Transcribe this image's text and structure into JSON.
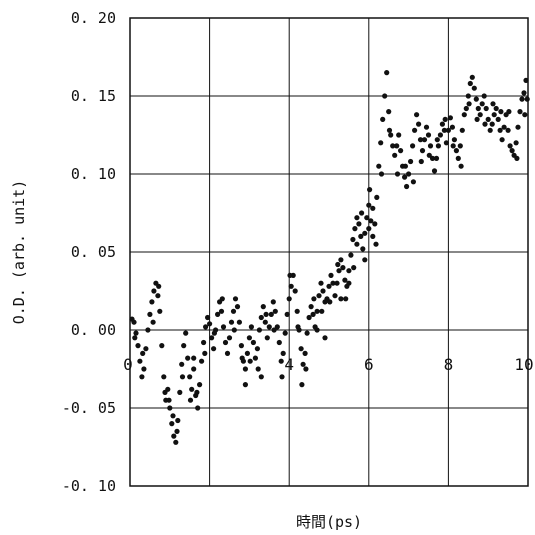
{
  "chart_data": {
    "type": "scatter",
    "title": "",
    "xlabel": "時間(ps)",
    "ylabel": "O.D.  (arb. unit)",
    "xlim": [
      0,
      10
    ],
    "ylim": [
      -0.1,
      0.2
    ],
    "x_ticks": [
      0,
      2,
      4,
      6,
      8,
      10
    ],
    "x_tick_labels": [
      "0",
      "",
      "4",
      "6",
      "8",
      "10"
    ],
    "y_ticks": [
      0.2,
      0.15,
      0.1,
      0.05,
      0.0,
      -0.05,
      -0.1
    ],
    "y_tick_labels": [
      "0. 20",
      "0. 15",
      "0. 10",
      "0. 05",
      "0. 00",
      "-0. 05",
      "-0. 10"
    ],
    "grid": true,
    "legend": "none",
    "marker_color": "#111111",
    "series": [
      {
        "points": [
          [
            0.05,
            0.007
          ],
          [
            0.1,
            0.005
          ],
          [
            0.15,
            -0.002
          ],
          [
            0.2,
            -0.01
          ],
          [
            0.25,
            -0.02
          ],
          [
            0.3,
            -0.03
          ],
          [
            0.35,
            -0.025
          ],
          [
            0.4,
            -0.012
          ],
          [
            0.45,
            0.0
          ],
          [
            0.5,
            0.01
          ],
          [
            0.55,
            0.018
          ],
          [
            0.6,
            0.025
          ],
          [
            0.65,
            0.03
          ],
          [
            0.7,
            0.022
          ],
          [
            0.75,
            0.012
          ],
          [
            0.8,
            -0.01
          ],
          [
            0.85,
            -0.03
          ],
          [
            0.9,
            -0.045
          ],
          [
            0.95,
            -0.038
          ],
          [
            1.0,
            -0.05
          ],
          [
            1.05,
            -0.06
          ],
          [
            1.1,
            -0.068
          ],
          [
            1.15,
            -0.072
          ],
          [
            1.2,
            -0.058
          ],
          [
            1.25,
            -0.04
          ],
          [
            1.3,
            -0.022
          ],
          [
            1.35,
            -0.01
          ],
          [
            1.4,
            -0.002
          ],
          [
            1.45,
            -0.018
          ],
          [
            1.5,
            -0.03
          ],
          [
            1.55,
            -0.038
          ],
          [
            1.6,
            -0.025
          ],
          [
            1.65,
            -0.042
          ],
          [
            1.7,
            -0.05
          ],
          [
            1.75,
            -0.035
          ],
          [
            1.8,
            -0.02
          ],
          [
            1.85,
            -0.008
          ],
          [
            1.9,
            0.002
          ],
          [
            1.95,
            0.008
          ],
          [
            2.0,
            0.004
          ],
          [
            2.05,
            -0.005
          ],
          [
            2.1,
            -0.012
          ],
          [
            2.15,
            0.0
          ],
          [
            2.2,
            0.01
          ],
          [
            2.25,
            0.018
          ],
          [
            2.3,
            0.012
          ],
          [
            2.35,
            0.002
          ],
          [
            2.4,
            -0.008
          ],
          [
            2.45,
            -0.015
          ],
          [
            2.5,
            -0.005
          ],
          [
            2.55,
            0.005
          ],
          [
            2.6,
            0.012
          ],
          [
            2.65,
            0.02
          ],
          [
            2.7,
            0.015
          ],
          [
            2.75,
            0.005
          ],
          [
            2.8,
            -0.01
          ],
          [
            2.85,
            -0.02
          ],
          [
            2.9,
            -0.025
          ],
          [
            2.95,
            -0.015
          ],
          [
            3.0,
            -0.005
          ],
          [
            3.05,
            0.002
          ],
          [
            3.1,
            -0.008
          ],
          [
            3.15,
            -0.018
          ],
          [
            3.2,
            -0.012
          ],
          [
            3.25,
            0.0
          ],
          [
            3.3,
            0.008
          ],
          [
            3.35,
            0.015
          ],
          [
            3.4,
            0.005
          ],
          [
            3.45,
            -0.005
          ],
          [
            3.5,
            0.002
          ],
          [
            3.55,
            0.01
          ],
          [
            3.6,
            0.018
          ],
          [
            3.65,
            0.012
          ],
          [
            3.7,
            0.002
          ],
          [
            3.75,
            -0.008
          ],
          [
            3.8,
            -0.02
          ],
          [
            3.85,
            -0.015
          ],
          [
            3.9,
            -0.002
          ],
          [
            3.95,
            0.01
          ],
          [
            4.0,
            0.02
          ],
          [
            4.05,
            0.028
          ],
          [
            4.1,
            0.035
          ],
          [
            4.15,
            0.025
          ],
          [
            4.2,
            0.012
          ],
          [
            4.25,
            0.0
          ],
          [
            4.3,
            -0.012
          ],
          [
            4.35,
            -0.022
          ],
          [
            4.4,
            -0.015
          ],
          [
            4.45,
            -0.002
          ],
          [
            4.5,
            0.008
          ],
          [
            4.55,
            0.015
          ],
          [
            4.6,
            0.01
          ],
          [
            4.65,
            0.002
          ],
          [
            4.7,
            0.012
          ],
          [
            4.75,
            0.022
          ],
          [
            4.8,
            0.03
          ],
          [
            4.85,
            0.025
          ],
          [
            4.9,
            0.018
          ],
          [
            4.95,
            0.02
          ],
          [
            5.0,
            0.028
          ],
          [
            5.05,
            0.035
          ],
          [
            5.1,
            0.03
          ],
          [
            5.15,
            0.022
          ],
          [
            5.2,
            0.03
          ],
          [
            5.25,
            0.038
          ],
          [
            5.3,
            0.045
          ],
          [
            5.35,
            0.04
          ],
          [
            5.4,
            0.032
          ],
          [
            5.45,
            0.028
          ],
          [
            5.5,
            0.038
          ],
          [
            5.55,
            0.048
          ],
          [
            5.6,
            0.058
          ],
          [
            5.65,
            0.065
          ],
          [
            5.7,
            0.072
          ],
          [
            5.75,
            0.068
          ],
          [
            5.8,
            0.06
          ],
          [
            5.85,
            0.052
          ],
          [
            5.9,
            0.062
          ],
          [
            5.95,
            0.072
          ],
          [
            6.0,
            0.08
          ],
          [
            6.05,
            0.07
          ],
          [
            6.1,
            0.06
          ],
          [
            6.15,
            0.068
          ],
          [
            6.2,
            0.085
          ],
          [
            6.25,
            0.105
          ],
          [
            6.3,
            0.12
          ],
          [
            6.35,
            0.135
          ],
          [
            6.4,
            0.15
          ],
          [
            6.45,
            0.165
          ],
          [
            6.5,
            0.14
          ],
          [
            6.55,
            0.125
          ],
          [
            6.6,
            0.118
          ],
          [
            6.65,
            0.112
          ],
          [
            6.7,
            0.118
          ],
          [
            6.75,
            0.125
          ],
          [
            6.8,
            0.115
          ],
          [
            6.85,
            0.105
          ],
          [
            6.9,
            0.098
          ],
          [
            6.95,
            0.092
          ],
          [
            7.0,
            0.1
          ],
          [
            7.05,
            0.108
          ],
          [
            7.1,
            0.118
          ],
          [
            7.15,
            0.128
          ],
          [
            7.2,
            0.138
          ],
          [
            7.25,
            0.132
          ],
          [
            7.3,
            0.122
          ],
          [
            7.35,
            0.115
          ],
          [
            7.4,
            0.122
          ],
          [
            7.45,
            0.13
          ],
          [
            7.5,
            0.125
          ],
          [
            7.55,
            0.118
          ],
          [
            7.6,
            0.11
          ],
          [
            7.65,
            0.102
          ],
          [
            7.7,
            0.11
          ],
          [
            7.75,
            0.118
          ],
          [
            7.8,
            0.125
          ],
          [
            7.85,
            0.132
          ],
          [
            7.9,
            0.128
          ],
          [
            7.95,
            0.12
          ],
          [
            8.0,
            0.128
          ],
          [
            8.05,
            0.136
          ],
          [
            8.1,
            0.13
          ],
          [
            8.15,
            0.122
          ],
          [
            8.2,
            0.115
          ],
          [
            8.25,
            0.11
          ],
          [
            8.3,
            0.118
          ],
          [
            8.35,
            0.128
          ],
          [
            8.4,
            0.138
          ],
          [
            8.45,
            0.142
          ],
          [
            8.5,
            0.15
          ],
          [
            8.55,
            0.158
          ],
          [
            8.6,
            0.162
          ],
          [
            8.65,
            0.155
          ],
          [
            8.7,
            0.148
          ],
          [
            8.75,
            0.142
          ],
          [
            8.8,
            0.138
          ],
          [
            8.85,
            0.145
          ],
          [
            8.9,
            0.15
          ],
          [
            8.95,
            0.142
          ],
          [
            9.0,
            0.135
          ],
          [
            9.05,
            0.128
          ],
          [
            9.1,
            0.132
          ],
          [
            9.15,
            0.138
          ],
          [
            9.2,
            0.142
          ],
          [
            9.25,
            0.135
          ],
          [
            9.3,
            0.128
          ],
          [
            9.35,
            0.122
          ],
          [
            9.4,
            0.13
          ],
          [
            9.45,
            0.138
          ],
          [
            9.5,
            0.128
          ],
          [
            9.55,
            0.118
          ],
          [
            9.6,
            0.115
          ],
          [
            9.65,
            0.112
          ],
          [
            9.7,
            0.12
          ],
          [
            9.75,
            0.13
          ],
          [
            9.8,
            0.14
          ],
          [
            9.85,
            0.148
          ],
          [
            9.9,
            0.152
          ],
          [
            9.95,
            0.16
          ],
          [
            9.98,
            0.148
          ],
          [
            0.12,
            -0.005
          ],
          [
            0.32,
            -0.015
          ],
          [
            0.58,
            0.005
          ],
          [
            0.72,
            0.028
          ],
          [
            0.88,
            -0.04
          ],
          [
            1.08,
            -0.055
          ],
          [
            1.18,
            -0.065
          ],
          [
            1.32,
            -0.03
          ],
          [
            1.52,
            -0.045
          ],
          [
            1.68,
            -0.04
          ],
          [
            1.88,
            -0.015
          ],
          [
            2.12,
            -0.002
          ],
          [
            2.32,
            0.02
          ],
          [
            2.62,
            0.0
          ],
          [
            2.82,
            -0.018
          ],
          [
            3.02,
            -0.02
          ],
          [
            3.22,
            -0.025
          ],
          [
            3.42,
            0.01
          ],
          [
            3.62,
            0.0
          ],
          [
            3.82,
            -0.03
          ],
          [
            4.02,
            0.035
          ],
          [
            4.22,
            0.002
          ],
          [
            4.32,
            -0.035
          ],
          [
            4.42,
            -0.025
          ],
          [
            4.62,
            0.02
          ],
          [
            4.82,
            0.012
          ],
          [
            5.02,
            0.018
          ],
          [
            5.22,
            0.042
          ],
          [
            5.42,
            0.02
          ],
          [
            5.62,
            0.04
          ],
          [
            5.82,
            0.075
          ],
          [
            6.02,
            0.09
          ],
          [
            6.18,
            0.055
          ],
          [
            6.32,
            0.1
          ],
          [
            6.52,
            0.128
          ],
          [
            6.72,
            0.1
          ],
          [
            6.92,
            0.105
          ],
          [
            7.12,
            0.095
          ],
          [
            7.32,
            0.108
          ],
          [
            7.52,
            0.112
          ],
          [
            7.72,
            0.122
          ],
          [
            7.92,
            0.135
          ],
          [
            8.12,
            0.118
          ],
          [
            8.32,
            0.105
          ],
          [
            8.52,
            0.145
          ],
          [
            8.72,
            0.135
          ],
          [
            8.92,
            0.132
          ],
          [
            9.12,
            0.145
          ],
          [
            9.32,
            0.14
          ],
          [
            9.52,
            0.14
          ],
          [
            9.72,
            0.11
          ],
          [
            9.92,
            0.138
          ],
          [
            5.7,
            0.055
          ],
          [
            5.5,
            0.03
          ],
          [
            5.3,
            0.02
          ],
          [
            6.0,
            0.065
          ],
          [
            6.1,
            0.078
          ],
          [
            5.9,
            0.045
          ],
          [
            4.9,
            -0.005
          ],
          [
            4.7,
            0.0
          ],
          [
            2.9,
            -0.035
          ],
          [
            3.3,
            -0.03
          ],
          [
            1.6,
            -0.018
          ],
          [
            0.98,
            -0.045
          ]
        ]
      }
    ]
  }
}
